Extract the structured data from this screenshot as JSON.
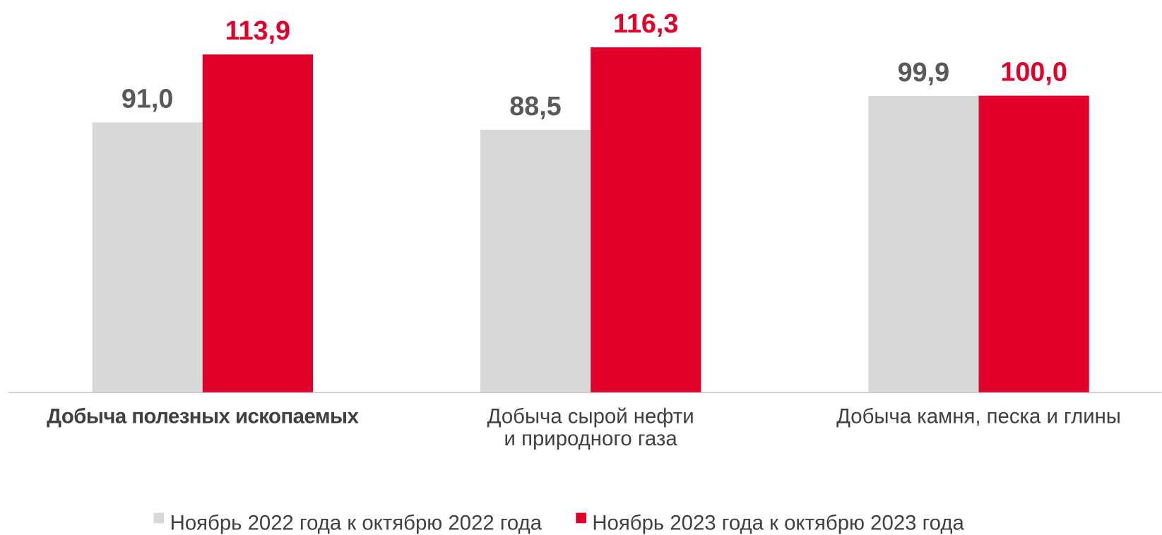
{
  "chart_data": {
    "type": "bar",
    "categories": [
      "Добыча полезных ископаемых",
      "Добыча сырой нефти\nи природного газа",
      "Добыча камня, песка и глины"
    ],
    "series": [
      {
        "name": "Ноябрь 2022 года к октябрю 2022 года",
        "color": "#d9d9d9",
        "label_color": "#595959",
        "values": [
          91.0,
          88.5,
          99.9
        ],
        "value_labels": [
          "91,0",
          "88,5",
          "99,9"
        ]
      },
      {
        "name": "Ноябрь 2023 года к октябрю 2023 года",
        "color": "#e0002a",
        "label_color": "#e0002a",
        "values": [
          113.9,
          116.3,
          100.0
        ],
        "value_labels": [
          "113,9",
          "116,3",
          "100,0"
        ]
      }
    ],
    "legend": "bottom"
  }
}
